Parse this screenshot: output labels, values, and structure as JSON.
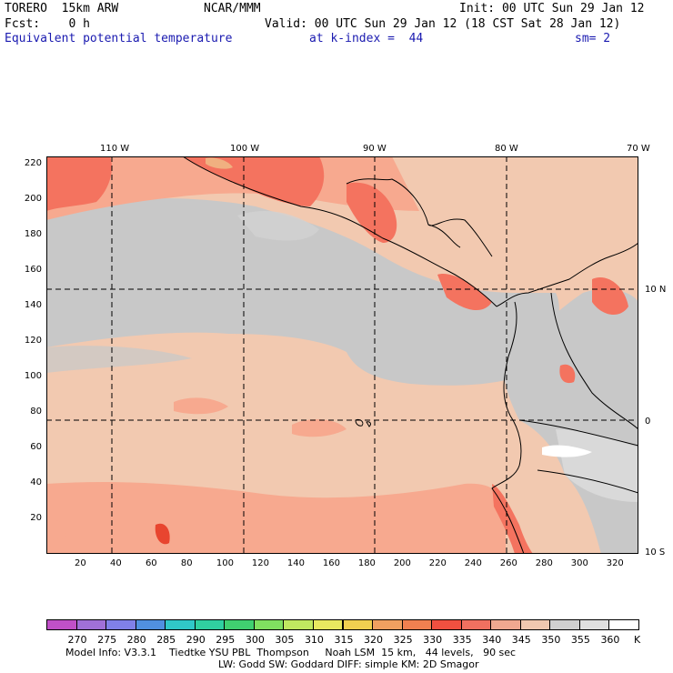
{
  "header": {
    "model": "TORERO  15km ARW",
    "org": "NCAR/MMM",
    "init": "Init: 00 UTC Sun 29 Jan 12",
    "fcst": "Fcst:    0 h",
    "valid": "Valid: 00 UTC Sun 29 Jan 12 (18 CST Sat 28 Jan 12)",
    "field": "Equivalent potential temperature",
    "level": "at k-index =  44",
    "smooth": "sm= 2"
  },
  "map": {
    "lon_labels": [
      "110 W",
      "100 W",
      "90 W",
      "80 W",
      "70 W"
    ],
    "lat_labels": [
      "10 N",
      "0",
      "10 S"
    ],
    "y_ticks": [
      "20",
      "40",
      "60",
      "80",
      "100",
      "120",
      "140",
      "160",
      "180",
      "200",
      "220"
    ],
    "x_ticks": [
      "20",
      "40",
      "60",
      "80",
      "100",
      "120",
      "140",
      "160",
      "180",
      "200",
      "220",
      "240",
      "260",
      "280",
      "300",
      "320"
    ],
    "colors": {
      "background_345": "#f2c9b0",
      "cool_350": "#c8c8c8",
      "cool_355": "#d9d9d9",
      "warm_335": "#f7a98f",
      "warm_330": "#f4735f",
      "hot_325": "#e8452f",
      "hot_320": "#f0b080",
      "grid": "#000000"
    }
  },
  "colorbar": {
    "unit": "K",
    "labels": [
      "270",
      "275",
      "280",
      "285",
      "290",
      "295",
      "300",
      "305",
      "310",
      "315",
      "320",
      "325",
      "330",
      "335",
      "340",
      "345",
      "350",
      "355",
      "360"
    ],
    "colors": [
      "#c050c8",
      "#a070d8",
      "#8080e8",
      "#5090e0",
      "#30c8c8",
      "#30d0a0",
      "#40d070",
      "#80e060",
      "#c0e860",
      "#e8e860",
      "#f0d050",
      "#f0a060",
      "#f08050",
      "#f05040",
      "#f07060",
      "#f0a890",
      "#f0c8b0",
      "#d0d0d0",
      "#e0e0e0",
      "#ffffff"
    ]
  },
  "footer": {
    "line1": "Model Info: V3.3.1    Tiedtke YSU PBL  Thompson     Noah LSM  15 km,   44 levels,   90 sec",
    "line2": "LW: Godd SW: Goddard DIFF: simple KM: 2D Smagor"
  }
}
